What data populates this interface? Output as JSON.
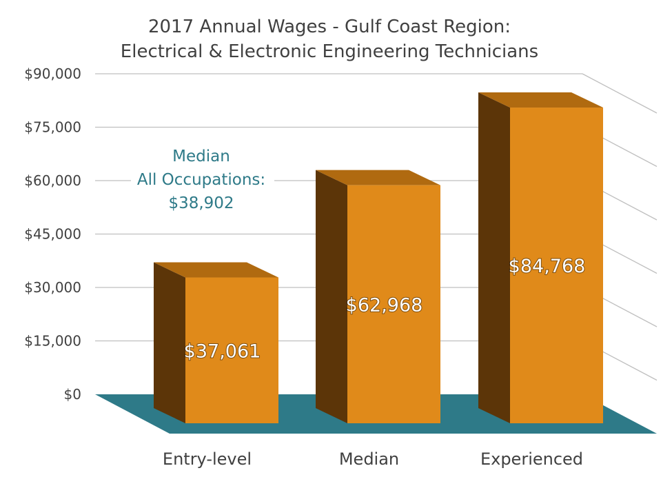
{
  "chart_data": {
    "type": "bar",
    "title": "2017 Annual Wages - Gulf Coast Region:",
    "subtitle": "Electrical & Electronic Engineering Technicians",
    "categories": [
      "Entry-level",
      "Median",
      "Experienced"
    ],
    "values": [
      37061,
      62968,
      84768
    ],
    "data_labels": [
      "$37,061",
      "$62,968",
      "$84,768"
    ],
    "ylim": [
      0,
      90000
    ],
    "yticks": [
      0,
      15000,
      30000,
      45000,
      60000,
      75000,
      90000
    ],
    "ytick_labels": [
      "$0",
      "$15,000",
      "$30,000",
      "$45,000",
      "$60,000",
      "$75,000",
      "$90,000"
    ],
    "grid": true,
    "style": "3d-column",
    "annotation": {
      "lines": [
        "Median",
        "All Occupations:",
        "$38,902"
      ]
    },
    "colors": {
      "bar_front": "#E08A1A",
      "bar_top": "#B06A10",
      "bar_side": "#5C3508",
      "floor": "#2E7A88",
      "grid": "#BFBFBF",
      "text": "#404040",
      "annotation": "#2E7A88"
    }
  }
}
